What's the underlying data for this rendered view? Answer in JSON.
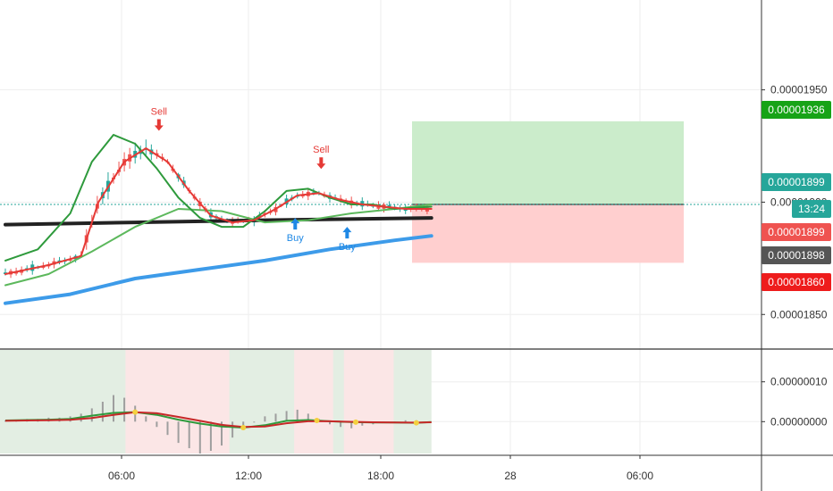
{
  "chart_data": [
    {
      "type": "candlestick",
      "title": "",
      "x_ticks": [
        "06:00",
        "12:00",
        "18:00",
        "28",
        "06:00"
      ],
      "y_ticks": [
        "0.00001950",
        "0.00001900",
        "0.00001850"
      ],
      "price_tags": [
        {
          "label": "0.00001936",
          "color": "#17a317",
          "price": 1.936e-05
        },
        {
          "label": "0.00001899",
          "color": "#26a69a",
          "price": 1.899e-05
        },
        {
          "label": "13:24",
          "color": "#26a69a",
          "price": 1.893e-05
        },
        {
          "label": "0.00001899",
          "color": "#ef5350",
          "price": 1.887e-05
        },
        {
          "label": "0.00001898",
          "color": "#555555",
          "price": 1.879e-05
        },
        {
          "label": "0.00001860",
          "color": "#ee1c1c",
          "price": 1.864e-05
        }
      ],
      "position_box": {
        "target": 1.936e-05,
        "entry": 1.899e-05,
        "stop": 1.873e-05
      },
      "signals": [
        {
          "label": "Sell",
          "type": "sell",
          "x": 7.1,
          "price": 1.931e-05
        },
        {
          "label": "Sell",
          "type": "sell",
          "x": 14.6,
          "price": 1.914e-05
        },
        {
          "label": "Buy",
          "type": "buy",
          "x": 13.4,
          "price": 1.893e-05
        },
        {
          "label": "Buy",
          "type": "buy",
          "x": 15.8,
          "price": 1.889e-05
        }
      ],
      "series": [
        {
          "name": "",
          "color": "#222222",
          "values": [
            [
              0,
              1.89e-05
            ],
            [
              6,
              1.891e-05
            ],
            [
              12,
              1.892e-05
            ],
            [
              19.7,
              1.893e-05
            ]
          ]
        },
        {
          "name": "",
          "color": "#3d9be9",
          "values": [
            [
              0,
              1.855e-05
            ],
            [
              3,
              1.859e-05
            ],
            [
              6,
              1.866e-05
            ],
            [
              9,
              1.87e-05
            ],
            [
              12,
              1.874e-05
            ],
            [
              15,
              1.879e-05
            ],
            [
              18,
              1.883e-05
            ],
            [
              19.7,
              1.885e-05
            ]
          ]
        },
        {
          "name": "",
          "color": "#5cb85c",
          "values": [
            [
              0,
              1.863e-05
            ],
            [
              2,
              1.868e-05
            ],
            [
              4,
              1.878e-05
            ],
            [
              6,
              1.889e-05
            ],
            [
              8,
              1.897e-05
            ],
            [
              10,
              1.896e-05
            ],
            [
              12,
              1.891e-05
            ],
            [
              14,
              1.892e-05
            ],
            [
              16,
              1.895e-05
            ],
            [
              18,
              1.897e-05
            ],
            [
              19.7,
              1.899e-05
            ]
          ]
        },
        {
          "name": "",
          "color": "#2e9a3c",
          "values": [
            [
              0,
              1.874e-05
            ],
            [
              1.5,
              1.879e-05
            ],
            [
              3,
              1.895e-05
            ],
            [
              4,
              1.918e-05
            ],
            [
              5,
              1.93e-05
            ],
            [
              6,
              1.926e-05
            ],
            [
              7,
              1.915e-05
            ],
            [
              8,
              1.902e-05
            ],
            [
              9,
              1.893e-05
            ],
            [
              10,
              1.889e-05
            ],
            [
              11,
              1.889e-05
            ],
            [
              12,
              1.896e-05
            ],
            [
              13,
              1.905e-05
            ],
            [
              14,
              1.906e-05
            ],
            [
              15,
              1.902e-05
            ],
            [
              16,
              1.899e-05
            ],
            [
              17,
              1.899e-05
            ],
            [
              18,
              1.897e-05
            ],
            [
              19.7,
              1.898e-05
            ]
          ]
        },
        {
          "name": "",
          "color": "#e53935",
          "values": [
            [
              0,
              1.868e-05
            ],
            [
              2,
              1.872e-05
            ],
            [
              3.5,
              1.876e-05
            ],
            [
              4.3,
              1.9e-05
            ],
            [
              5.5,
              1.918e-05
            ],
            [
              6.5,
              1.924e-05
            ],
            [
              7.5,
              1.918e-05
            ],
            [
              8.5,
              1.905e-05
            ],
            [
              9.5,
              1.894e-05
            ],
            [
              10.5,
              1.891e-05
            ],
            [
              11.5,
              1.892e-05
            ],
            [
              12.5,
              1.897e-05
            ],
            [
              13.5,
              1.903e-05
            ],
            [
              14.5,
              1.904e-05
            ],
            [
              15.5,
              1.901e-05
            ],
            [
              16.5,
              1.899e-05
            ],
            [
              17.5,
              1.898e-05
            ],
            [
              18.5,
              1.897e-05
            ],
            [
              19.7,
              1.897e-05
            ]
          ]
        }
      ]
    },
    {
      "type": "line",
      "title": "",
      "y_ticks": [
        "0.00000010",
        "0.00000000"
      ],
      "ylim": [
        -8e-08,
        1.8e-07
      ],
      "series": [
        {
          "name": "",
          "color": "#2e9a3c",
          "values": [
            [
              0,
              3e-09
            ],
            [
              1,
              4e-09
            ],
            [
              2,
              5e-09
            ],
            [
              3,
              7e-09
            ],
            [
              4,
              1.5e-08
            ],
            [
              5,
              2.2e-08
            ],
            [
              6,
              2.4e-08
            ],
            [
              7,
              1.7e-08
            ],
            [
              8,
              5e-09
            ],
            [
              9,
              -5e-09
            ],
            [
              10,
              -1.2e-08
            ],
            [
              11,
              -1.5e-08
            ],
            [
              12,
              -9e-09
            ],
            [
              13,
              2e-09
            ],
            [
              14,
              4e-09
            ],
            [
              15,
              1e-09
            ],
            [
              16,
              -1e-09
            ],
            [
              17,
              -2e-09
            ],
            [
              18,
              -2e-09
            ],
            [
              19,
              -3e-09
            ],
            [
              19.7,
              -1e-09
            ]
          ]
        },
        {
          "name": "",
          "color": "#c62828",
          "values": [
            [
              0,
              2e-09
            ],
            [
              1,
              3e-09
            ],
            [
              2,
              3.5e-09
            ],
            [
              3,
              4.5e-09
            ],
            [
              4,
              9e-09
            ],
            [
              5,
              1.7e-08
            ],
            [
              6,
              2.35e-08
            ],
            [
              7,
              2.1e-08
            ],
            [
              8,
              1.2e-08
            ],
            [
              9,
              2e-09
            ],
            [
              10,
              -8e-09
            ],
            [
              11,
              -1.35e-08
            ],
            [
              12,
              -1.2e-08
            ],
            [
              13,
              -4e-09
            ],
            [
              14,
              1e-09
            ],
            [
              15,
              1e-09
            ],
            [
              16,
              -5e-10
            ],
            [
              17,
              -1.5e-09
            ],
            [
              18,
              -2e-09
            ],
            [
              19,
              -2.5e-09
            ],
            [
              19.7,
              -1.5e-09
            ]
          ]
        }
      ],
      "histogram": [
        0.001,
        0.001,
        0.002,
        0.002,
        0.003,
        0.003,
        0.004,
        0.006,
        0.01,
        0.015,
        0.02,
        0.018,
        0.012,
        0.004,
        -0.004,
        -0.01,
        -0.016,
        -0.02,
        -0.024,
        -0.022,
        -0.018,
        -0.012,
        -0.006,
        0.0,
        0.004,
        0.006,
        0.008,
        0.009,
        0.006,
        0.002,
        -0.002,
        -0.004,
        -0.005,
        -0.003,
        -0.002,
        -0.001,
        0.0,
        0.001,
        0.001,
        0.0
      ],
      "crosses": [
        6.0,
        11.0,
        14.4,
        16.2,
        19.0
      ]
    }
  ]
}
